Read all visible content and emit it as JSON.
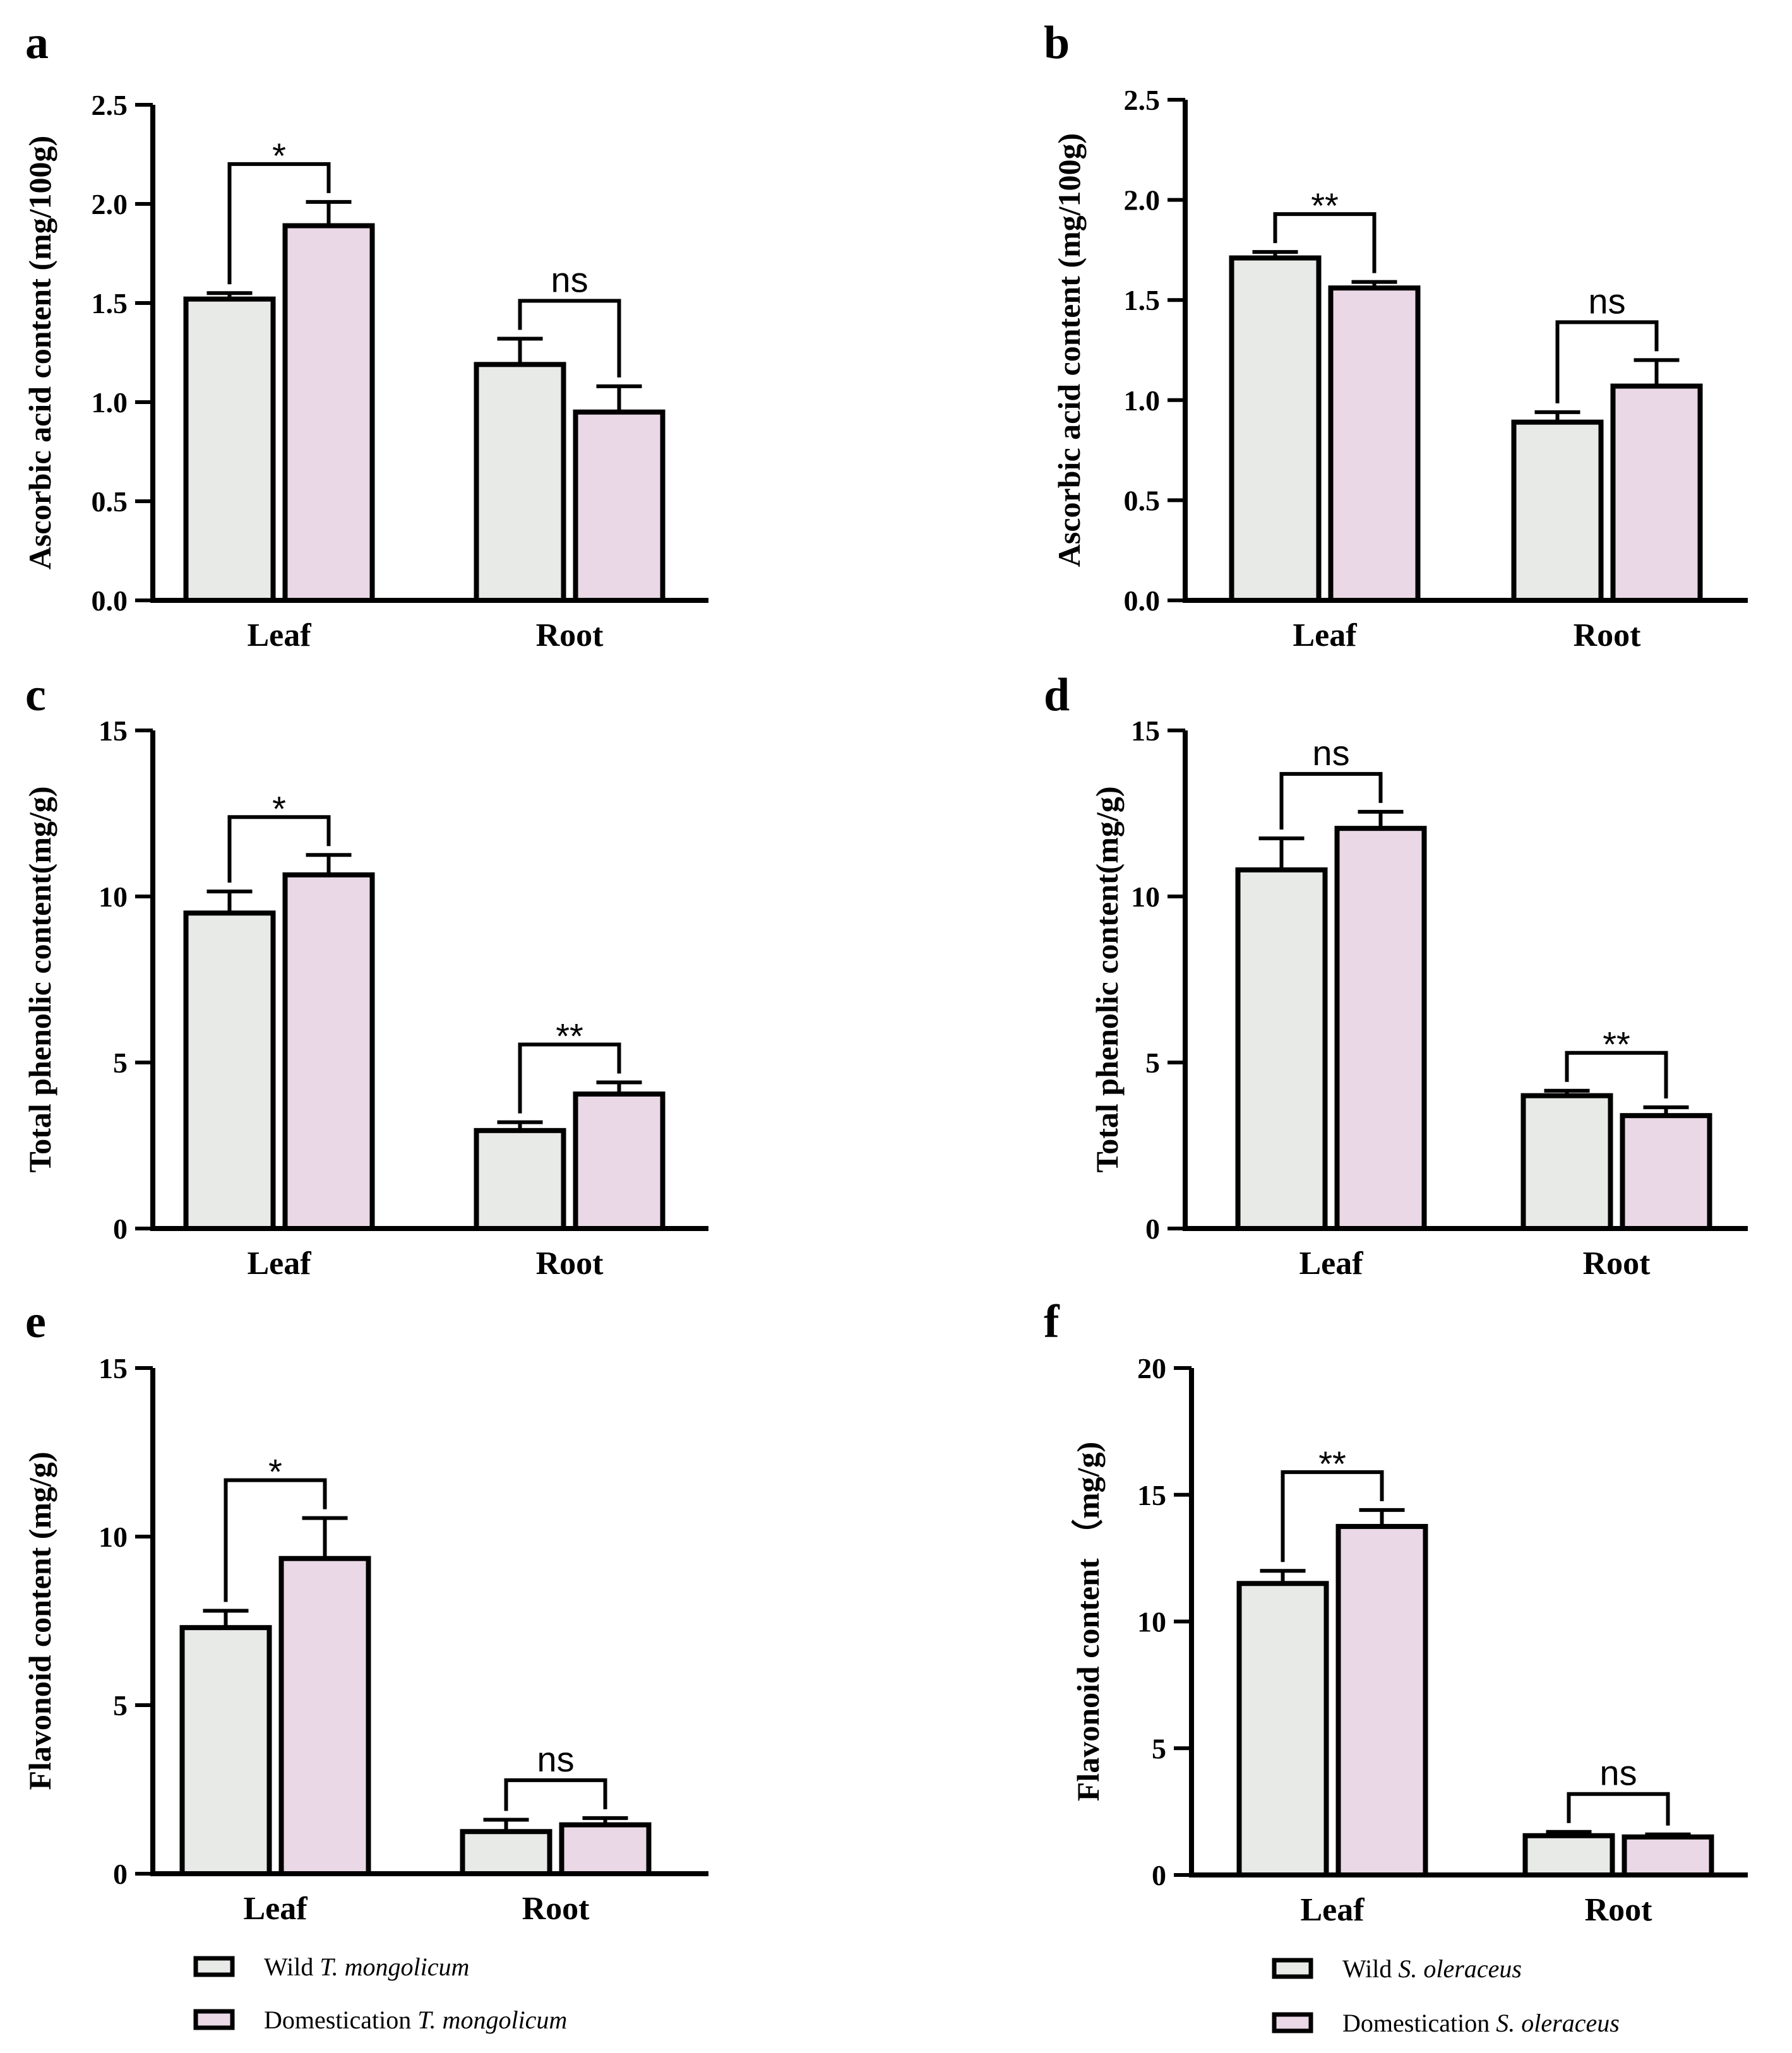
{
  "colors": {
    "wild": "#e8eae7",
    "domestication": "#ead8e6",
    "stroke": "#000000"
  },
  "legends": [
    {
      "items": [
        {
          "series": "wild",
          "prefix": "Wild",
          "species": "T. mongolicum"
        },
        {
          "series": "domestication",
          "prefix": "Domestication",
          "species": "T. mongolicum"
        }
      ]
    },
    {
      "items": [
        {
          "series": "wild",
          "prefix": "Wild",
          "species": "S. oleraceus"
        },
        {
          "series": "domestication",
          "prefix": "Domestication",
          "species": "S. oleraceus"
        }
      ]
    }
  ],
  "chart_data": [
    {
      "panel": "a",
      "type": "bar",
      "ylabel": "Ascorbic acid content (mg/100g)",
      "categories": [
        "Leaf",
        "Root"
      ],
      "ylim": [
        0,
        2.5
      ],
      "yticks": [
        "0.0",
        "0.5",
        "1.0",
        "1.5",
        "2.0",
        "2.5"
      ],
      "yticks_values": [
        0,
        0.5,
        1.0,
        1.5,
        2.0,
        2.5
      ],
      "series": [
        {
          "name": "Wild T. mongolicum",
          "key": "wild",
          "values": [
            1.52,
            1.19
          ],
          "errors": [
            0.03,
            0.13
          ]
        },
        {
          "name": "Domestication T. mongolicum",
          "key": "domestication",
          "values": [
            1.89,
            0.95
          ],
          "errors": [
            0.12,
            0.13
          ]
        }
      ],
      "significance": [
        "*",
        "ns"
      ]
    },
    {
      "panel": "b",
      "type": "bar",
      "ylabel": "Ascorbic acid content (mg/100g)",
      "categories": [
        "Leaf",
        "Root"
      ],
      "ylim": [
        0,
        2.5
      ],
      "yticks": [
        "0.0",
        "0.5",
        "1.0",
        "1.5",
        "2.0",
        "2.5"
      ],
      "yticks_values": [
        0,
        0.5,
        1.0,
        1.5,
        2.0,
        2.5
      ],
      "series": [
        {
          "name": "Wild S. oleraceus",
          "key": "wild",
          "values": [
            1.71,
            0.89
          ],
          "errors": [
            0.03,
            0.05
          ]
        },
        {
          "name": "Domestication S. oleraceus",
          "key": "domestication",
          "values": [
            1.56,
            1.07
          ],
          "errors": [
            0.03,
            0.13
          ]
        }
      ],
      "significance": [
        "**",
        "ns"
      ]
    },
    {
      "panel": "c",
      "type": "bar",
      "ylabel": "Total phenolic content(mg/g)",
      "categories": [
        "Leaf",
        "Root"
      ],
      "ylim": [
        0,
        15
      ],
      "yticks": [
        "0",
        "5",
        "10",
        "15"
      ],
      "yticks_values": [
        0,
        5,
        10,
        15
      ],
      "series": [
        {
          "name": "Wild T. mongolicum",
          "key": "wild",
          "values": [
            9.5,
            2.95
          ],
          "errors": [
            0.65,
            0.25
          ]
        },
        {
          "name": "Domestication T. mongolicum",
          "key": "domestication",
          "values": [
            10.65,
            4.05
          ],
          "errors": [
            0.6,
            0.35
          ]
        }
      ],
      "significance": [
        "*",
        "**"
      ]
    },
    {
      "panel": "d",
      "type": "bar",
      "ylabel": "Total phenolic content(mg/g)",
      "categories": [
        "Leaf",
        "Root"
      ],
      "ylim": [
        0,
        15
      ],
      "yticks": [
        "0",
        "5",
        "10",
        "15"
      ],
      "yticks_values": [
        0,
        5,
        10,
        15
      ],
      "series": [
        {
          "name": "Wild S. oleraceus",
          "key": "wild",
          "values": [
            10.8,
            4.0
          ],
          "errors": [
            0.95,
            0.15
          ]
        },
        {
          "name": "Domestication S. oleraceus",
          "key": "domestication",
          "values": [
            12.05,
            3.4
          ],
          "errors": [
            0.5,
            0.25
          ]
        }
      ],
      "significance": [
        "ns",
        "**"
      ]
    },
    {
      "panel": "e",
      "type": "bar",
      "ylabel": "Flavonoid content (mg/g)",
      "categories": [
        "Leaf",
        "Root"
      ],
      "ylim": [
        0,
        15
      ],
      "yticks": [
        "0",
        "5",
        "10",
        "15"
      ],
      "yticks_values": [
        0,
        5,
        10,
        15
      ],
      "series": [
        {
          "name": "Wild T. mongolicum",
          "key": "wild",
          "values": [
            7.3,
            1.25
          ],
          "errors": [
            0.5,
            0.35
          ]
        },
        {
          "name": "Domestication T. mongolicum",
          "key": "domestication",
          "values": [
            9.35,
            1.45
          ],
          "errors": [
            1.2,
            0.2
          ]
        }
      ],
      "significance": [
        "*",
        "ns"
      ]
    },
    {
      "panel": "f",
      "type": "bar",
      "ylabel": "Flavonoid content （mg/g)",
      "categories": [
        "Leaf",
        "Root"
      ],
      "ylim": [
        0,
        20
      ],
      "yticks": [
        "0",
        "5",
        "10",
        "15",
        "20"
      ],
      "yticks_values": [
        0,
        5,
        10,
        15,
        20
      ],
      "series": [
        {
          "name": "Wild S. oleraceus",
          "key": "wild",
          "values": [
            11.5,
            1.55
          ],
          "errors": [
            0.5,
            0.15
          ]
        },
        {
          "name": "Domestication S. oleraceus",
          "key": "domestication",
          "values": [
            13.75,
            1.5
          ],
          "errors": [
            0.65,
            0.1
          ]
        }
      ],
      "significance": [
        "**",
        "ns"
      ]
    }
  ]
}
